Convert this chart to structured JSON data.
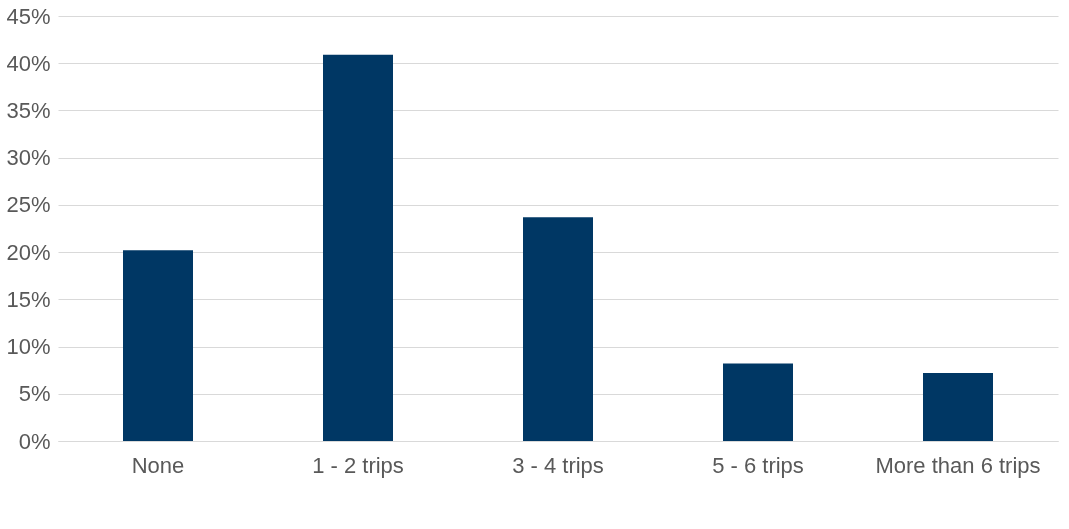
{
  "chart_data": {
    "type": "bar",
    "categories": [
      "None",
      "1 - 2 trips",
      "3 - 4 trips",
      "5 - 6 trips",
      "More than 6 trips"
    ],
    "values": [
      20.2,
      40.9,
      23.7,
      8.2,
      7.2
    ],
    "color": "#003764",
    "ylim": [
      0,
      45
    ],
    "yticks": [
      {
        "value": 0,
        "label": "0%"
      },
      {
        "value": 5,
        "label": "5%"
      },
      {
        "value": 10,
        "label": "10%"
      },
      {
        "value": 15,
        "label": "15%"
      },
      {
        "value": 20,
        "label": "20%"
      },
      {
        "value": 25,
        "label": "25%"
      },
      {
        "value": 30,
        "label": "30%"
      },
      {
        "value": 35,
        "label": "35%"
      },
      {
        "value": 40,
        "label": "40%"
      },
      {
        "value": 45,
        "label": "45%"
      }
    ],
    "grid": "y"
  }
}
